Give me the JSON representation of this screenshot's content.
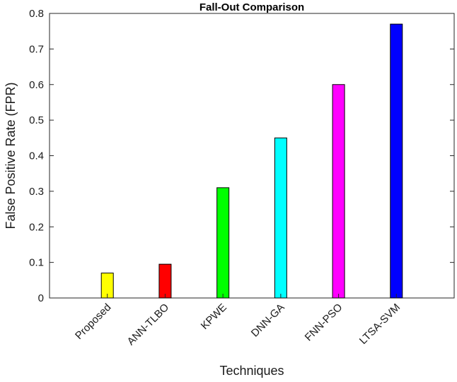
{
  "chart_data": {
    "type": "bar",
    "title": "Fall-Out Comparison",
    "xlabel": "Techniques",
    "ylabel": "False Positive Rate (FPR)",
    "ylim": [
      0,
      0.8
    ],
    "yticks": [
      "0",
      "0.1",
      "0.2",
      "0.3",
      "0.4",
      "0.5",
      "0.6",
      "0.7",
      "0.8"
    ],
    "categories": [
      "Proposed",
      "ANN-TLBO",
      "KPWE",
      "DNN-GA",
      "FNN-PSO",
      "LTSA-SVM"
    ],
    "values": [
      0.07,
      0.095,
      0.31,
      0.45,
      0.6,
      0.77
    ],
    "colors": [
      "#ffff00",
      "#ff0000",
      "#00ff00",
      "#00ffff",
      "#ff00ff",
      "#0000ff"
    ],
    "grid": false,
    "legend": "none"
  }
}
